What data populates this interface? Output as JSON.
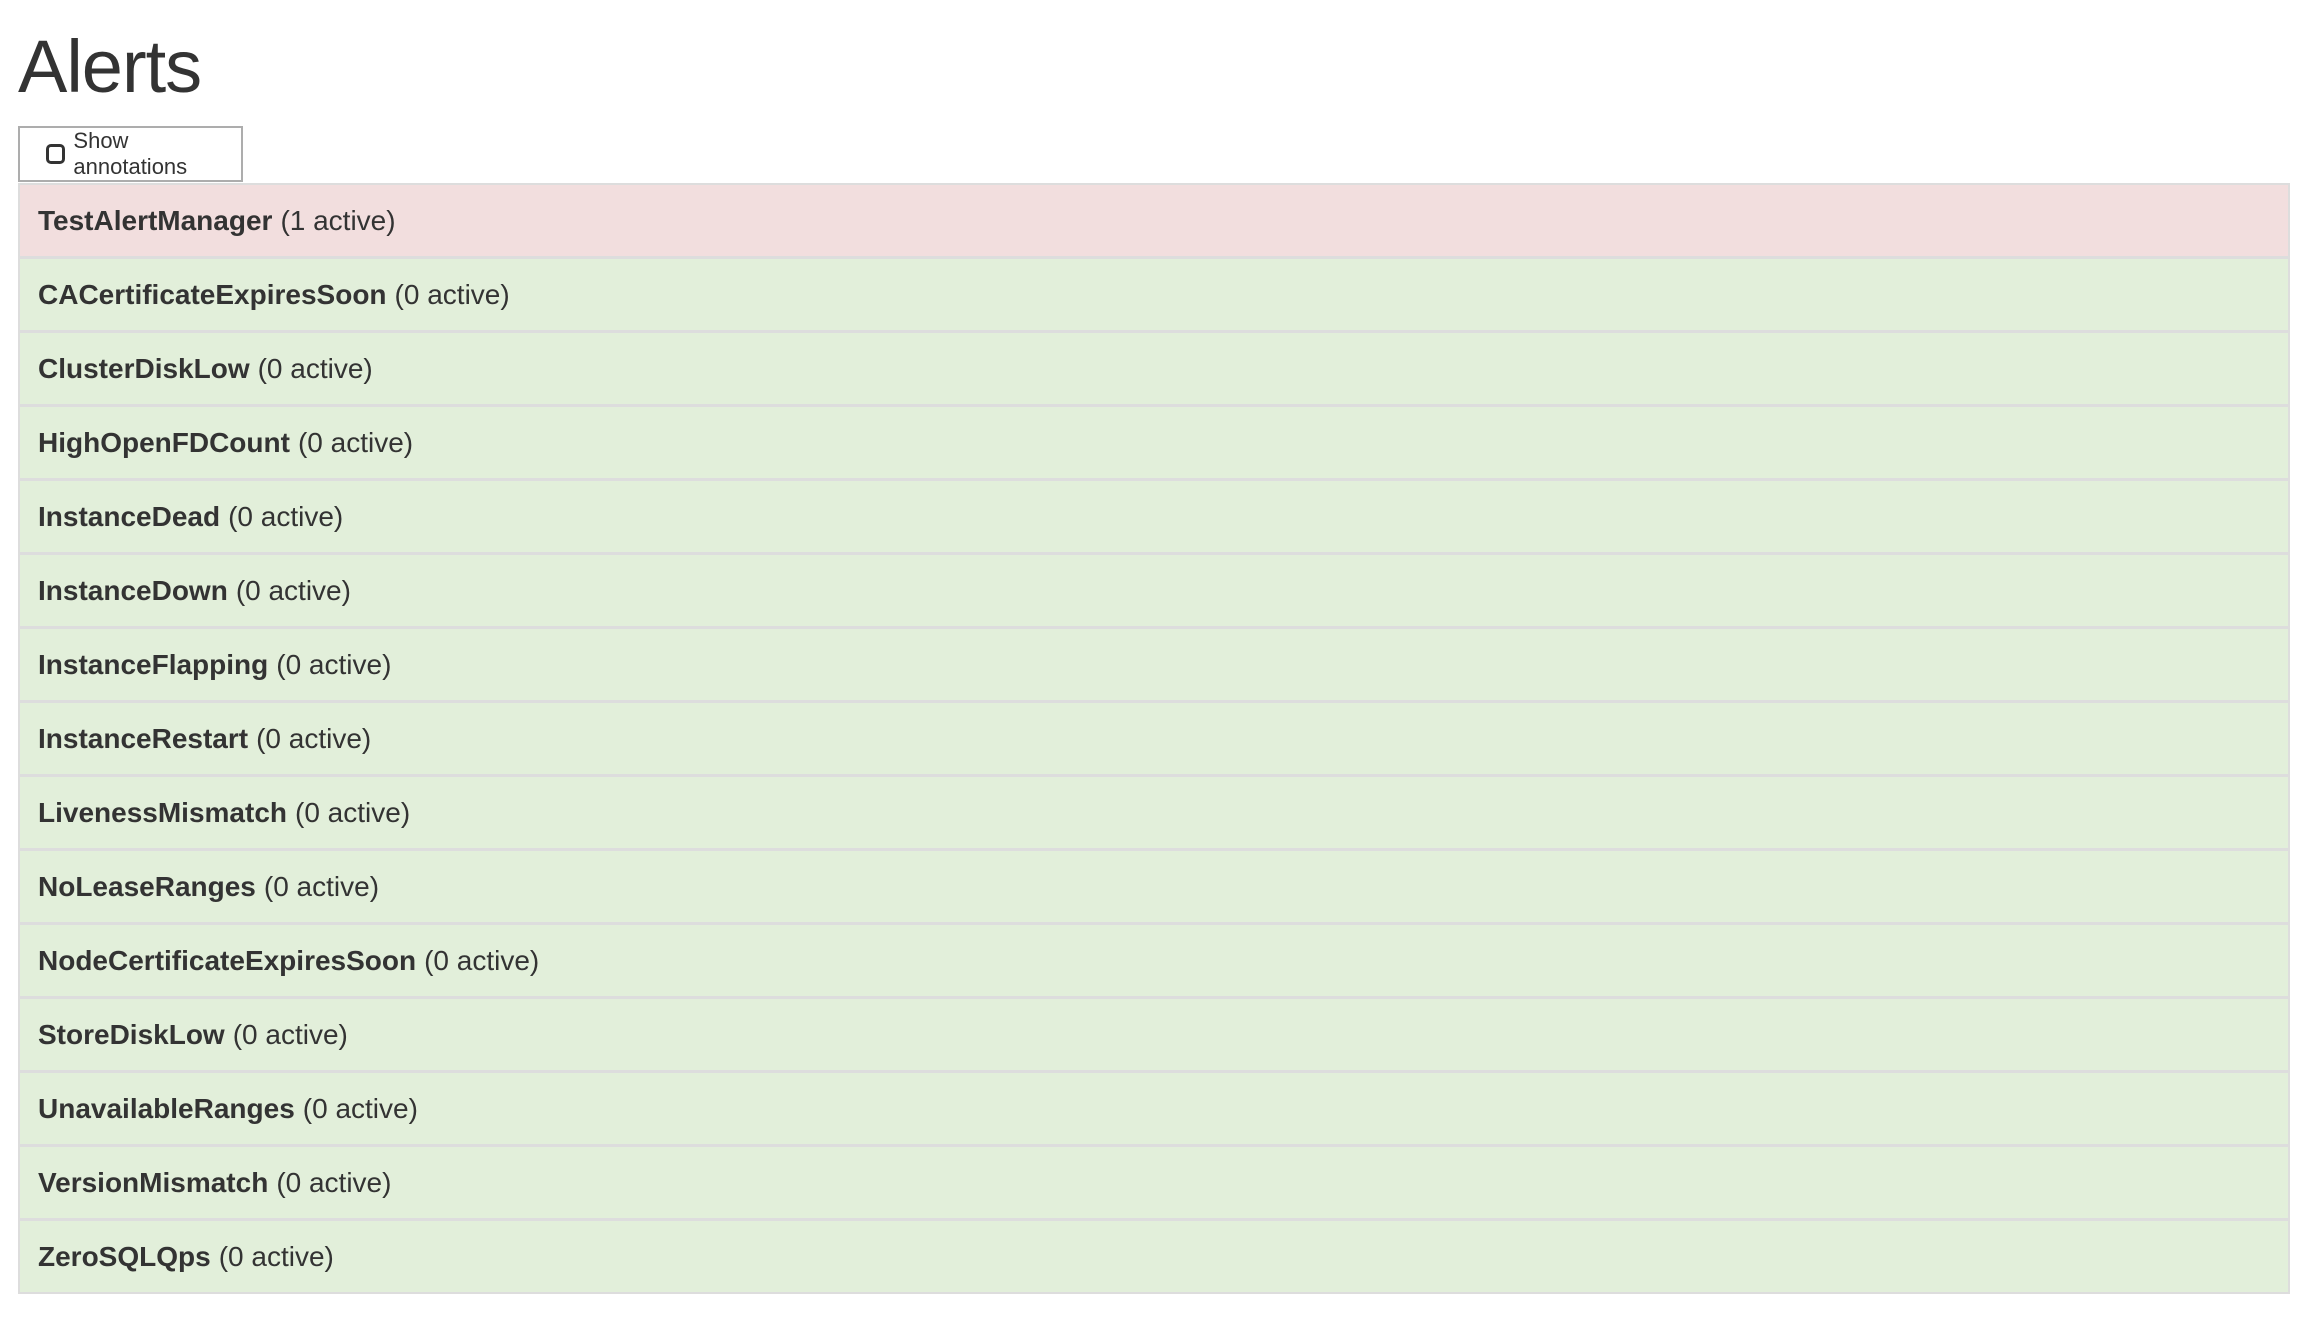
{
  "page_title": "Alerts",
  "show_annotations": {
    "label": "Show annotations",
    "checked": false
  },
  "colors": {
    "firing": "#f2dede",
    "inactive": "#e2efda",
    "border": "#dddddd",
    "text": "#333333"
  },
  "alerts": [
    {
      "name": "TestAlertManager",
      "status": "(1 active)",
      "state": "firing"
    },
    {
      "name": "CACertificateExpiresSoon",
      "status": "(0 active)",
      "state": "ok"
    },
    {
      "name": "ClusterDiskLow",
      "status": "(0 active)",
      "state": "ok"
    },
    {
      "name": "HighOpenFDCount",
      "status": "(0 active)",
      "state": "ok"
    },
    {
      "name": "InstanceDead",
      "status": "(0 active)",
      "state": "ok"
    },
    {
      "name": "InstanceDown",
      "status": "(0 active)",
      "state": "ok"
    },
    {
      "name": "InstanceFlapping",
      "status": "(0 active)",
      "state": "ok"
    },
    {
      "name": "InstanceRestart",
      "status": "(0 active)",
      "state": "ok"
    },
    {
      "name": "LivenessMismatch",
      "status": "(0 active)",
      "state": "ok"
    },
    {
      "name": "NoLeaseRanges",
      "status": "(0 active)",
      "state": "ok"
    },
    {
      "name": "NodeCertificateExpiresSoon",
      "status": "(0 active)",
      "state": "ok"
    },
    {
      "name": "StoreDiskLow",
      "status": "(0 active)",
      "state": "ok"
    },
    {
      "name": "UnavailableRanges",
      "status": "(0 active)",
      "state": "ok"
    },
    {
      "name": "VersionMismatch",
      "status": "(0 active)",
      "state": "ok"
    },
    {
      "name": "ZeroSQLQps",
      "status": "(0 active)",
      "state": "ok"
    }
  ]
}
